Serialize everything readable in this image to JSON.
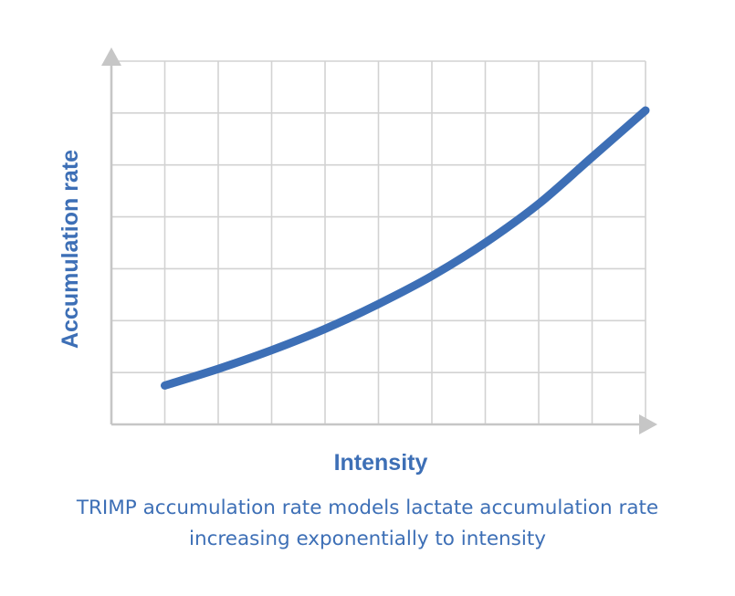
{
  "colors": {
    "accent": "#3d6fb6",
    "grid": "#d2d2d2",
    "axis": "#c6c6c6"
  },
  "chart_data": {
    "type": "line",
    "title": "",
    "xlabel": "Intensity",
    "ylabel": "Accumulation rate",
    "x_ticks_count": 10,
    "y_ticks_count": 7,
    "xlim": [
      0,
      10
    ],
    "ylim": [
      0,
      7
    ],
    "grid": true,
    "series": [
      {
        "name": "Lactate accumulation rate",
        "x": [
          1,
          2,
          3,
          4,
          5,
          6,
          7,
          8,
          9,
          10
        ],
        "y": [
          0.75,
          1.07,
          1.43,
          1.84,
          2.32,
          2.86,
          3.5,
          4.25,
          5.15,
          6.05
        ]
      }
    ]
  },
  "caption": {
    "line1": "TRIMP accumulation rate models lactate accumulation rate",
    "line2": "increasing exponentially to intensity"
  }
}
